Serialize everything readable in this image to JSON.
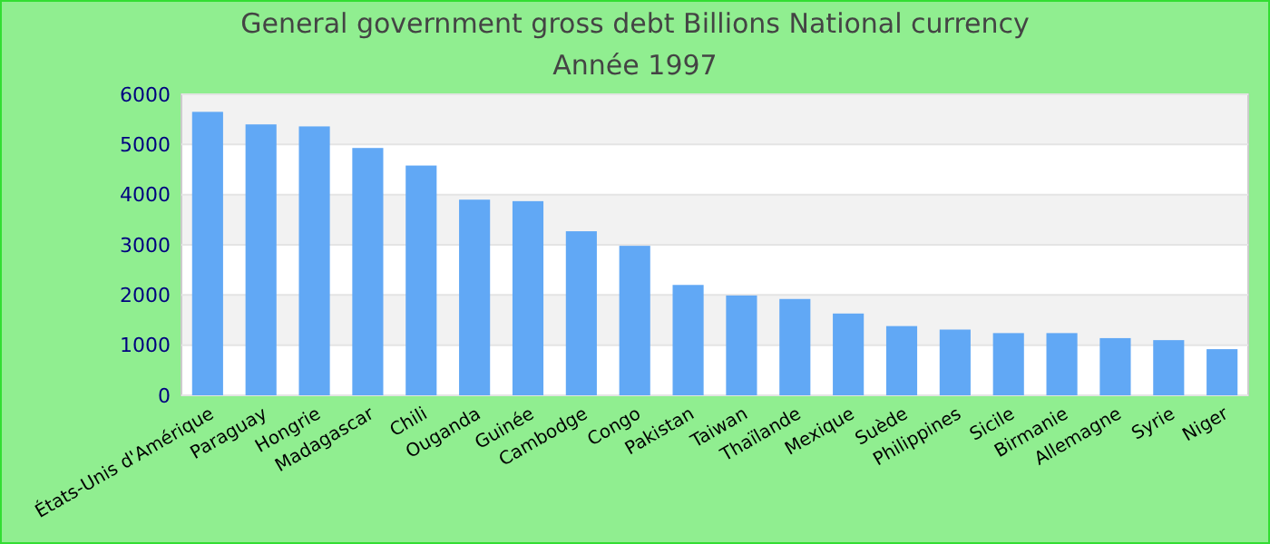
{
  "chart_data": {
    "type": "bar",
    "title": "General government gross debt Billions National currency",
    "subtitle": "Année 1997",
    "categories": [
      "États-Unis d'Amérique",
      "Paraguay",
      "Hongrie",
      "Madagascar",
      "Chili",
      "Ouganda",
      "Guinée",
      "Cambodge",
      "Congo",
      "Pakistan",
      "Taiwan",
      "Thaïlande",
      "Mexique",
      "Suède",
      "Philippines",
      "Sicile",
      "Birmanie",
      "Allemagne",
      "Syrie",
      "Niger"
    ],
    "values": [
      5650,
      5400,
      5360,
      4930,
      4580,
      3900,
      3870,
      3270,
      2980,
      2200,
      1990,
      1920,
      1630,
      1380,
      1310,
      1240,
      1240,
      1140,
      1100,
      920
    ],
    "color": "#61a8f5",
    "ylim": [
      0,
      6000
    ],
    "yticks": [
      0,
      1000,
      2000,
      3000,
      4000,
      5000,
      6000
    ],
    "grid": "y"
  }
}
